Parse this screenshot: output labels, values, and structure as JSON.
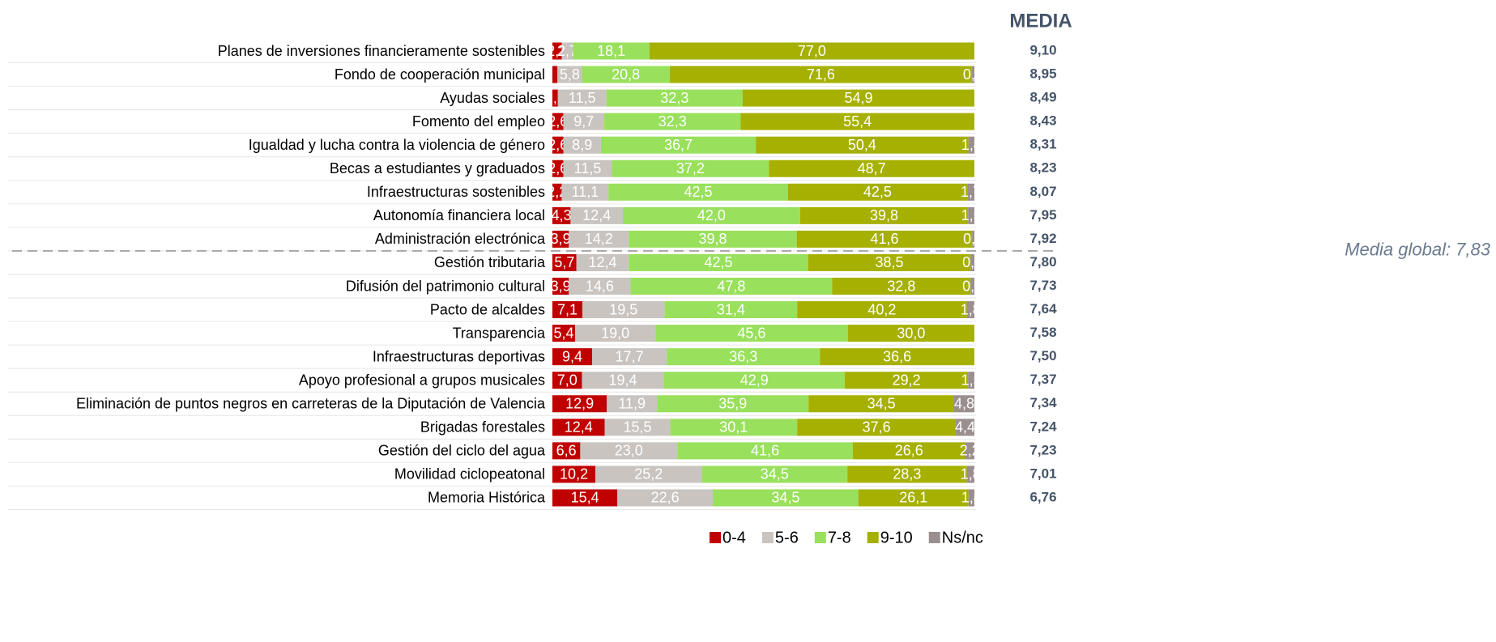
{
  "chart_data": {
    "type": "stacked_bar_horizontal",
    "categories": [
      "Planes de inversiones financieramente sostenibles",
      "Fondo de cooperación municipal",
      "Ayudas sociales",
      "Fomento del empleo",
      "Igualdad y lucha contra la violencia de género",
      "Becas a estudiantes y graduados",
      "Infraestructuras sostenibles",
      "Autonomía financiera local",
      "Administración electrónica",
      "Gestión tributaria",
      "Difusión del patrimonio cultural",
      "Pacto de alcaldes",
      "Transparencia",
      "Infraestructuras deportivas",
      "Apoyo profesional a grupos musicales",
      "Eliminación de puntos negros en carreteras de la Diputación de Valencia",
      "Brigadas forestales",
      "Gestión del ciclo del agua",
      "Movilidad ciclopeatonal",
      "Memoria Histórica"
    ],
    "series": [
      {
        "name": "0-4",
        "color": "#c00000",
        "values": [
          2.2,
          1.2,
          1.3,
          2.6,
          2.6,
          2.6,
          2.2,
          4.3,
          3.9,
          5.7,
          3.9,
          7.1,
          5.4,
          9.4,
          7.0,
          12.9,
          12.4,
          6.6,
          10.2,
          15.4
        ],
        "value_labels": [
          "2,2",
          null,
          "1,3",
          "2,6",
          "2,6",
          "2,6",
          "2,2",
          "4,3",
          "3,9",
          "5,7",
          "3,9",
          "7,1",
          "5,4",
          "9,4",
          "7,0",
          "12,9",
          "12,4",
          "6,6",
          "10,2",
          "15,4"
        ]
      },
      {
        "name": "5-6",
        "color": "#c9c4c0",
        "values": [
          2.7,
          5.8,
          11.5,
          9.7,
          8.9,
          11.5,
          11.1,
          12.4,
          14.2,
          12.4,
          14.6,
          19.5,
          19.0,
          17.7,
          19.4,
          11.9,
          15.5,
          23.0,
          25.2,
          22.6
        ],
        "value_labels": [
          "2,7",
          "5,8",
          "11,5",
          "9,7",
          "8,9",
          "11,5",
          "11,1",
          "12,4",
          "14,2",
          "12,4",
          "14,6",
          "19,5",
          "19,0",
          "17,7",
          "19,4",
          "11,9",
          "15,5",
          "23,0",
          "25,2",
          "22,6"
        ]
      },
      {
        "name": "7-8",
        "color": "#99e05c",
        "values": [
          18.1,
          20.8,
          32.3,
          32.3,
          36.7,
          37.2,
          42.5,
          42.0,
          39.8,
          42.5,
          47.8,
          31.4,
          45.6,
          36.3,
          42.9,
          35.9,
          30.1,
          41.6,
          34.5,
          34.5
        ],
        "value_labels": [
          "18,1",
          "20,8",
          "32,3",
          "32,3",
          "36,7",
          "37,2",
          "42,5",
          "42,0",
          "39,8",
          "42,5",
          "47,8",
          "31,4",
          "45,6",
          "36,3",
          "42,9",
          "35,9",
          "30,1",
          "41,6",
          "34,5",
          "34,5"
        ]
      },
      {
        "name": "9-10",
        "color": "#a6b000",
        "values": [
          77.0,
          71.6,
          54.9,
          55.4,
          50.4,
          48.7,
          42.5,
          39.8,
          41.6,
          38.5,
          32.8,
          40.2,
          30.0,
          36.6,
          29.2,
          34.5,
          37.6,
          26.6,
          28.3,
          26.1
        ],
        "value_labels": [
          "77,0",
          "71,6",
          "54,9",
          "55,4",
          "50,4",
          "48,7",
          "42,5",
          "39,8",
          "41,6",
          "38,5",
          "32,8",
          "40,2",
          "30,0",
          "36,6",
          "29,2",
          "34,5",
          "37,6",
          "26,6",
          "28,3",
          "26,1"
        ]
      },
      {
        "name": "Ns/nc",
        "color": "#9a8e8e",
        "values": [
          null,
          0.6,
          null,
          null,
          1.4,
          null,
          1.7,
          1.5,
          0.5,
          0.9,
          0.9,
          1.8,
          null,
          null,
          1.5,
          4.8,
          4.4,
          2.2,
          1.8,
          1.4
        ],
        "value_labels": [
          null,
          "0,6",
          null,
          null,
          "1,4",
          null,
          "1,7",
          "1,5",
          "0,5",
          "0,9",
          "0,9",
          "1,8",
          null,
          null,
          "1,5",
          "4,8",
          "4,4",
          "2,2",
          "1,8",
          "1,4"
        ]
      }
    ],
    "xlim": [
      0,
      100
    ],
    "media": {
      "title": "MEDIA",
      "values": [
        9.1,
        8.95,
        8.49,
        8.43,
        8.31,
        8.23,
        8.07,
        7.95,
        7.92,
        7.8,
        7.73,
        7.64,
        7.58,
        7.5,
        7.37,
        7.34,
        7.24,
        7.23,
        7.01,
        6.76
      ],
      "value_labels": [
        "9,10",
        "8,95",
        "8,49",
        "8,43",
        "8,31",
        "8,23",
        "8,07",
        "7,95",
        "7,92",
        "7,80",
        "7,73",
        "7,64",
        "7,58",
        "7,50",
        "7,37",
        "7,34",
        "7,24",
        "7,23",
        "7,01",
        "6,76"
      ]
    },
    "reference": {
      "label": "Media global: 7,83",
      "value": 7.83
    },
    "legend": "bottom"
  }
}
